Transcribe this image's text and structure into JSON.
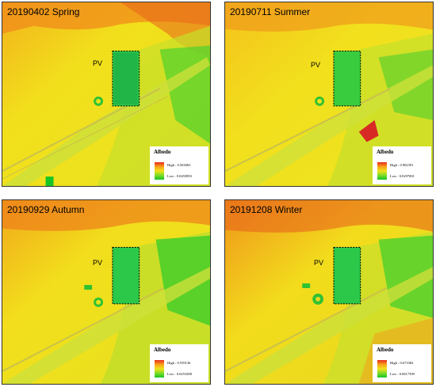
{
  "panels": [
    {
      "title": "20190402 Spring",
      "pv_label": "PV",
      "legend": {
        "title": "Albedo",
        "high_label": "High",
        "high_value": "0.563063",
        "low_label": "Low",
        "low_value": "0.0455893"
      }
    },
    {
      "title": "20190711 Summer",
      "pv_label": "PV",
      "legend": {
        "title": "Albedo",
        "high_label": "High",
        "high_value": "0.902391",
        "low_label": "Low",
        "low_value": "0.0297001"
      }
    },
    {
      "title": "20190929 Autumn",
      "pv_label": "PV",
      "legend": {
        "title": "Albedo",
        "high_label": "High",
        "high_value": "0.559136",
        "low_label": "Low",
        "low_value": "0.0253288"
      }
    },
    {
      "title": "20191208 Winter",
      "pv_label": "PV",
      "legend": {
        "title": "Albedo",
        "high_label": "High",
        "high_value": "0.673382",
        "low_label": "Low",
        "low_value": "0.0617399"
      }
    }
  ],
  "colors": {
    "high": "#e8291c",
    "mid_high": "#f7a11a",
    "mid": "#f2e21b",
    "mid_low": "#7fdc2a",
    "low": "#16c626"
  }
}
